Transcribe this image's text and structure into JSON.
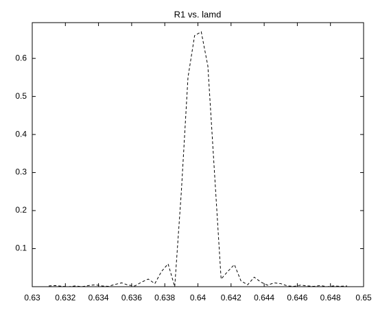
{
  "chart_data": {
    "type": "line",
    "title": "R1 vs. lamd",
    "x": [
      0.631,
      0.6314,
      0.6318,
      0.6322,
      0.6326,
      0.633,
      0.6334,
      0.6338,
      0.6342,
      0.6346,
      0.635,
      0.6354,
      0.6358,
      0.6362,
      0.6366,
      0.637,
      0.6374,
      0.6378,
      0.6382,
      0.6386,
      0.639,
      0.6394,
      0.6398,
      0.6402,
      0.6406,
      0.641,
      0.6414,
      0.6418,
      0.6422,
      0.6426,
      0.643,
      0.6434,
      0.6438,
      0.6442,
      0.6446,
      0.645,
      0.6454,
      0.6458,
      0.6462,
      0.6466,
      0.647,
      0.6474,
      0.6478,
      0.6482,
      0.6486,
      0.649
    ],
    "series": [
      {
        "color": "#000000",
        "values": [
          0.002,
          0.003,
          0.001,
          0.0,
          0.002,
          0.0,
          0.003,
          0.005,
          0.002,
          0.001,
          0.006,
          0.01,
          0.004,
          0.002,
          0.012,
          0.02,
          0.008,
          0.04,
          0.06,
          0.0,
          0.25,
          0.55,
          0.66,
          0.67,
          0.58,
          0.3,
          0.02,
          0.04,
          0.058,
          0.015,
          0.005,
          0.025,
          0.012,
          0.004,
          0.01,
          0.008,
          0.002,
          0.001,
          0.004,
          0.002,
          0.001,
          0.003,
          0.0,
          0.002,
          0.001,
          0.002
        ]
      }
    ],
    "xlim": [
      0.63,
      0.65
    ],
    "ylim": [
      0,
      0.694
    ],
    "xticks": [
      0.63,
      0.632,
      0.634,
      0.636,
      0.638,
      0.64,
      0.642,
      0.644,
      0.646,
      0.648,
      0.65
    ],
    "yticks": [
      0.1,
      0.2,
      0.3,
      0.4,
      0.5,
      0.6
    ],
    "line_style": "dashed"
  }
}
